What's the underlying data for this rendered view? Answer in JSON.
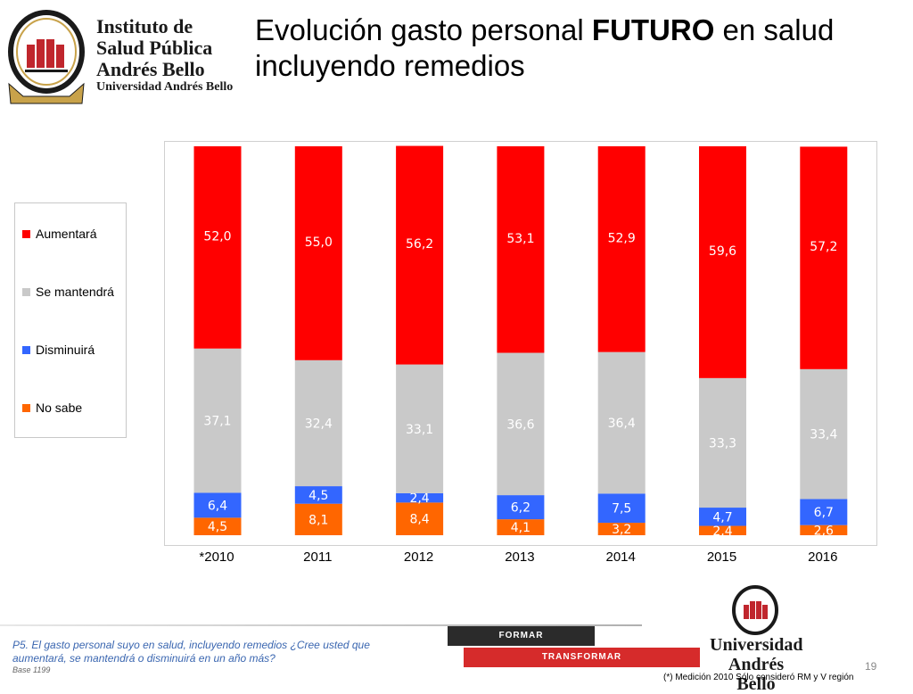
{
  "logo": {
    "line1": "Instituto de",
    "line2": "Salud Pública",
    "line3": "Andrés Bello",
    "subtitle": "Universidad Andrés Bello"
  },
  "title": {
    "part1": "Evolución gasto personal ",
    "emphasis": "FUTURO",
    "part2": " en salud incluyendo remedios"
  },
  "chart_data": {
    "type": "bar",
    "stacked": true,
    "categories": [
      "*2010",
      "2011",
      "2012",
      "2013",
      "2014",
      "2015",
      "2016"
    ],
    "ylim": [
      0,
      100
    ],
    "grid": false,
    "legend_position": "left",
    "series": [
      {
        "name": "No sabe",
        "color": "#ff6600",
        "values": [
          4.5,
          8.1,
          8.4,
          4.1,
          3.2,
          2.4,
          2.6
        ],
        "labels": [
          "4,5",
          "8,1",
          "8,4",
          "4,1",
          "3,2",
          "2,4",
          "2,6"
        ]
      },
      {
        "name": "Disminuirá",
        "color": "#3366ff",
        "values": [
          6.4,
          4.5,
          2.4,
          6.2,
          7.5,
          4.7,
          6.7
        ],
        "labels": [
          "6,4",
          "4,5",
          "2,4",
          "6,2",
          "7,5",
          "4,7",
          "6,7"
        ]
      },
      {
        "name": "Se mantendrá",
        "color": "#c9c9c9",
        "values": [
          37.1,
          32.4,
          33.1,
          36.6,
          36.4,
          33.3,
          33.4
        ],
        "labels": [
          "37,1",
          "32,4",
          "33,1",
          "36,6",
          "36,4",
          "33,3",
          "33,4"
        ]
      },
      {
        "name": "Aumentará",
        "color": "#ff0000",
        "values": [
          52.0,
          55.0,
          56.2,
          53.1,
          52.9,
          59.6,
          57.2
        ],
        "labels": [
          "52,0",
          "55,0",
          "56,2",
          "53,1",
          "52,9",
          "59,6",
          "57,2"
        ]
      }
    ]
  },
  "legend": {
    "items": [
      "Aumentará",
      "Se mantendrá",
      "Disminuirá",
      "No sabe"
    ]
  },
  "footer": {
    "question": "P5. El gasto personal suyo en salud, incluyendo remedios ¿Cree usted que aumentará, se mantendrá o disminuirá en un año más?",
    "base": "Base 1199",
    "formar": "FORMAR",
    "transformar": "TRANSFORMAR",
    "university": "Universidad Andrés Bello",
    "page": "19",
    "note": "(*) Medición 2010 Sólo consideró RM y V región"
  }
}
